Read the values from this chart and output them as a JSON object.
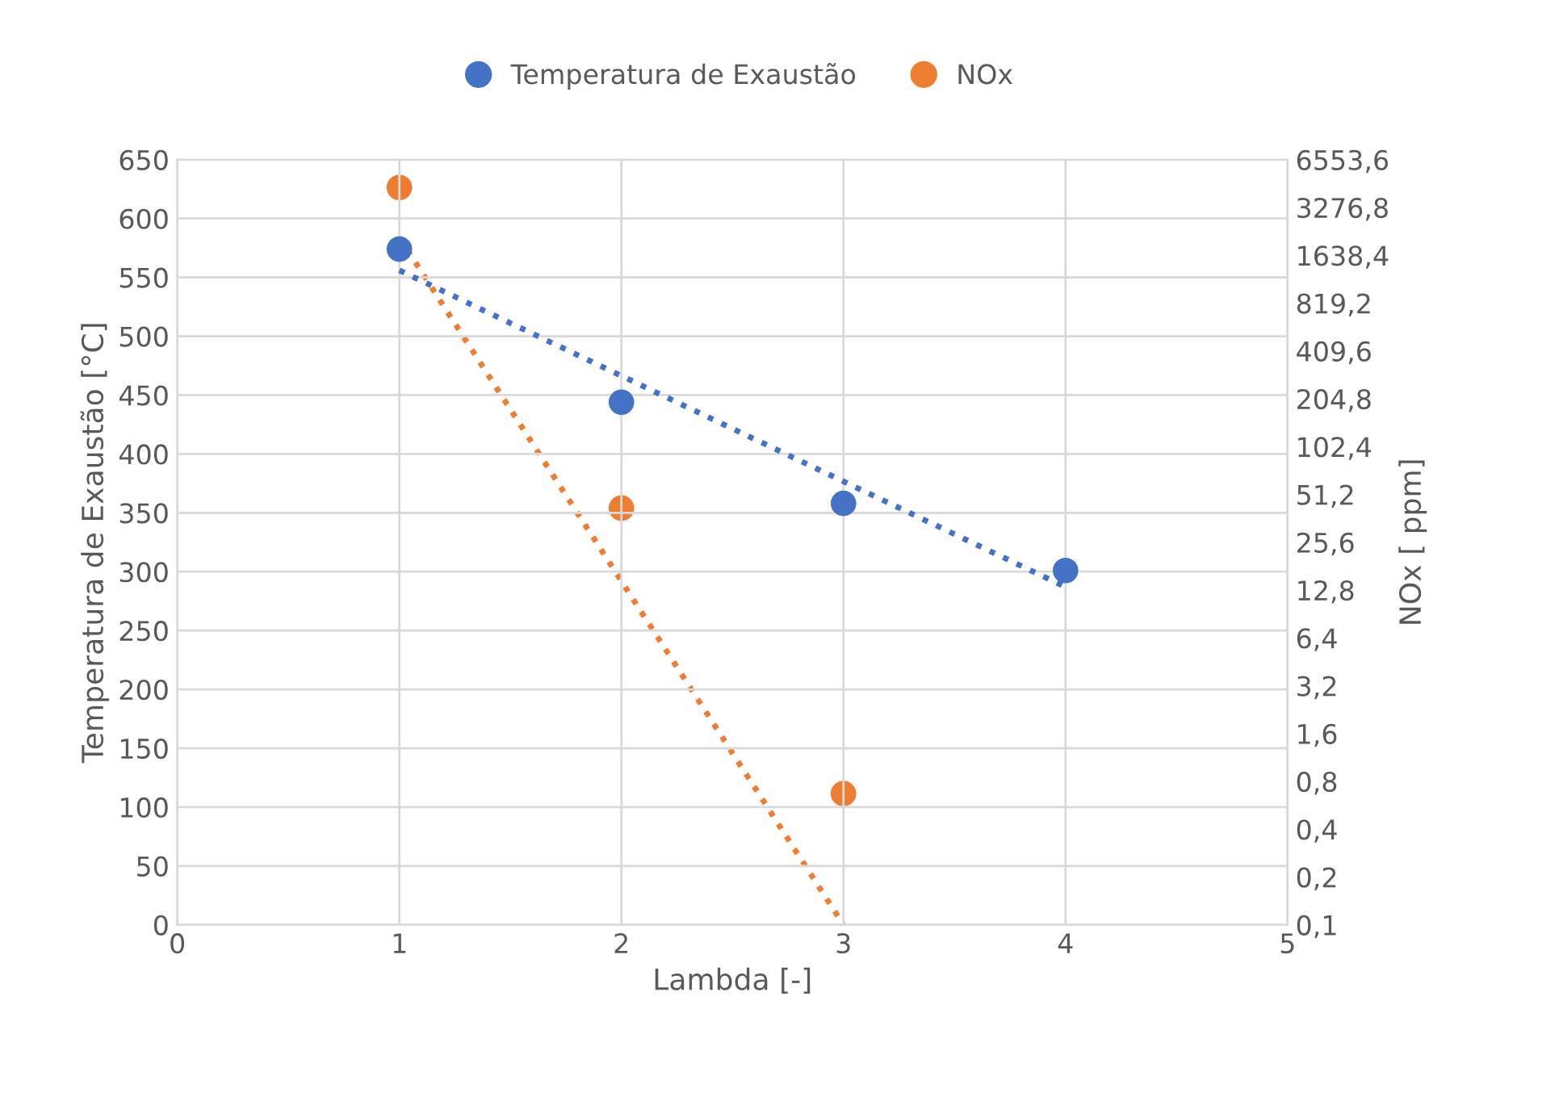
{
  "chart_data": {
    "type": "scatter",
    "xlabel": "Lambda [-]",
    "ylabel": "Temperatura de Exaustão [°C]",
    "y2label": "NOx [ ppm]",
    "xlim": [
      0,
      5
    ],
    "xticks": [
      0,
      1,
      2,
      3,
      4,
      5
    ],
    "ylim": [
      0,
      650
    ],
    "yticks": [
      0,
      50,
      100,
      150,
      200,
      250,
      300,
      350,
      400,
      450,
      500,
      550,
      600,
      650
    ],
    "y2lim": [
      0.1,
      6553.6
    ],
    "log": "y2",
    "y2ticks": [
      {
        "value": 0.1,
        "label": "0,1"
      },
      {
        "value": 0.2,
        "label": "0,2"
      },
      {
        "value": 0.4,
        "label": "0,4"
      },
      {
        "value": 0.8,
        "label": "0,8"
      },
      {
        "value": 1.6,
        "label": "1,6"
      },
      {
        "value": 3.2,
        "label": "3,2"
      },
      {
        "value": 6.4,
        "label": "6,4"
      },
      {
        "value": 12.8,
        "label": "12,8"
      },
      {
        "value": 25.6,
        "label": "25,6"
      },
      {
        "value": 51.2,
        "label": "51,2"
      },
      {
        "value": 102.4,
        "label": "102,4"
      },
      {
        "value": 204.8,
        "label": "204,8"
      },
      {
        "value": 409.6,
        "label": "409,6"
      },
      {
        "value": 819.2,
        "label": "819,2"
      },
      {
        "value": 1638.4,
        "label": "1638,4"
      },
      {
        "value": 3276.8,
        "label": "3276,8"
      },
      {
        "value": 6553.6,
        "label": "6553,6"
      }
    ],
    "grid": true,
    "legend": "top",
    "marker": "circle",
    "series": [
      {
        "name": "Temperatura de Exaustão",
        "color": "#4472c4",
        "x": [
          1,
          2,
          3,
          4
        ],
        "values": [
          574,
          444,
          358,
          301
        ]
      },
      {
        "name": "NOx",
        "axis": "y2",
        "color": "#ed7d31",
        "x": [
          1,
          2,
          3
        ],
        "values": [
          4380,
          42,
          0.67
        ]
      },
      {
        "type": "line",
        "color": "#4472c4",
        "marker": "none",
        "line_style": "dotted",
        "x": [
          1,
          4
        ],
        "values": [
          556,
          287
        ]
      },
      {
        "type": "line",
        "axis": "y2",
        "color": "#ed7d31",
        "marker": "none",
        "line_style": "dotted",
        "x": [
          1,
          3
        ],
        "values": [
          2120,
          0.1
        ]
      }
    ]
  }
}
